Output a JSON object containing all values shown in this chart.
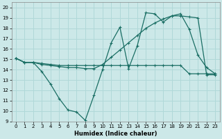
{
  "title": "",
  "xlabel": "Humidex (Indice chaleur)",
  "ylabel": "",
  "bg_color": "#cce8e8",
  "line_color": "#1a6e64",
  "grid_color": "#b0d8d8",
  "xlim": [
    -0.5,
    23.5
  ],
  "ylim": [
    9,
    20.5
  ],
  "xticks": [
    0,
    1,
    2,
    3,
    4,
    5,
    6,
    7,
    8,
    9,
    10,
    11,
    12,
    13,
    14,
    15,
    16,
    17,
    18,
    19,
    20,
    21,
    22,
    23
  ],
  "yticks": [
    9,
    10,
    11,
    12,
    13,
    14,
    15,
    16,
    17,
    18,
    19,
    20
  ],
  "line1_x": [
    0,
    1,
    2,
    3,
    4,
    5,
    6,
    7,
    8,
    9,
    10,
    11,
    12,
    13,
    14,
    15,
    16,
    17,
    18,
    19,
    20,
    21,
    22,
    23
  ],
  "line1_y": [
    15.1,
    14.7,
    14.7,
    13.8,
    12.6,
    11.2,
    10.1,
    9.9,
    9.1,
    11.5,
    14.0,
    16.6,
    18.1,
    14.1,
    16.3,
    19.5,
    19.4,
    18.6,
    19.2,
    19.4,
    17.9,
    15.4,
    14.2,
    13.6
  ],
  "line2_x": [
    0,
    1,
    2,
    3,
    4,
    5,
    6,
    7,
    8,
    9,
    10,
    11,
    12,
    13,
    14,
    15,
    16,
    17,
    18,
    19,
    20,
    21,
    22,
    23
  ],
  "line2_y": [
    15.1,
    14.7,
    14.7,
    14.5,
    14.4,
    14.3,
    14.2,
    14.2,
    14.1,
    14.1,
    14.5,
    15.2,
    15.9,
    16.6,
    17.3,
    18.0,
    18.5,
    18.9,
    19.2,
    19.2,
    19.1,
    19.0,
    13.5,
    13.5
  ],
  "line3_x": [
    0,
    1,
    2,
    3,
    4,
    5,
    6,
    7,
    8,
    9,
    10,
    11,
    12,
    13,
    14,
    15,
    16,
    17,
    18,
    19,
    20,
    21,
    22,
    23
  ],
  "line3_y": [
    15.1,
    14.7,
    14.7,
    14.6,
    14.5,
    14.4,
    14.4,
    14.4,
    14.4,
    14.4,
    14.4,
    14.4,
    14.4,
    14.4,
    14.4,
    14.4,
    14.4,
    14.4,
    14.4,
    14.4,
    13.6,
    13.6,
    13.6,
    13.6
  ]
}
